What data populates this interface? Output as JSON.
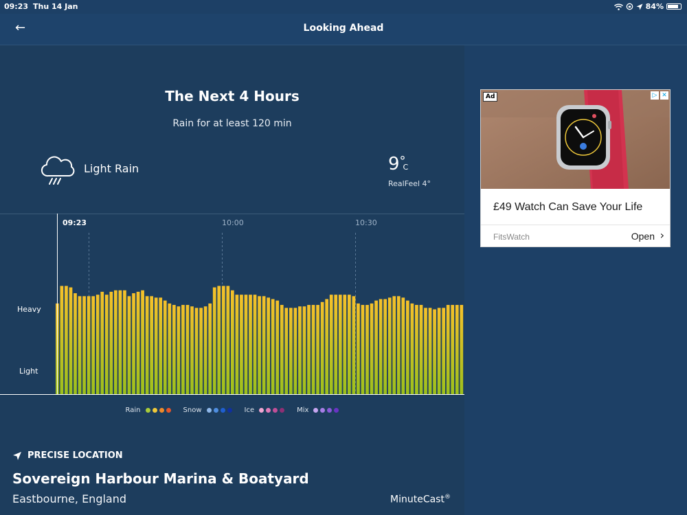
{
  "status_bar": {
    "time": "09:23",
    "date": "Thu 14 Jan",
    "battery": "84%",
    "battery_level": 0.84,
    "icons": [
      "wifi-icon",
      "lock-rotation-icon",
      "location-icon",
      "battery-icon"
    ]
  },
  "nav": {
    "back_icon": "back-arrow-icon",
    "title": "Looking Ahead"
  },
  "forecast": {
    "headline": "The Next 4 Hours",
    "summary": "Rain for at least 120 min",
    "condition_icon": "rain-cloud-icon",
    "condition": "Light Rain",
    "temperature": "9",
    "temperature_degree": "°",
    "temperature_unit": "C",
    "realfeel": "RealFeel 4°"
  },
  "chart_data": {
    "type": "bar",
    "y_labels": [
      "Heavy",
      "Light"
    ],
    "x_ticks": [
      "09:23",
      "10:00",
      "10:30"
    ],
    "current_time": "09:23",
    "series": [
      {
        "values": [
          0.62,
          0.74,
          0.74,
          0.73,
          0.69,
          0.67,
          0.67,
          0.67,
          0.67,
          0.68,
          0.7,
          0.68,
          0.7,
          0.71,
          0.71,
          0.71,
          0.67,
          0.69,
          0.7,
          0.71,
          0.67,
          0.67,
          0.66,
          0.66,
          0.64,
          0.62,
          0.61,
          0.6,
          0.61,
          0.61,
          0.6,
          0.59,
          0.59,
          0.6,
          0.62,
          0.73,
          0.74,
          0.74,
          0.74,
          0.71,
          0.68,
          0.68,
          0.68,
          0.68,
          0.68,
          0.67,
          0.67,
          0.66,
          0.65,
          0.64,
          0.61,
          0.59,
          0.59,
          0.59,
          0.6,
          0.6,
          0.61,
          0.61,
          0.61,
          0.63,
          0.65,
          0.68,
          0.68,
          0.68,
          0.68,
          0.68,
          0.67,
          0.62,
          0.61,
          0.61,
          0.62,
          0.64,
          0.65,
          0.65,
          0.66,
          0.67,
          0.67,
          0.66,
          0.64,
          0.62,
          0.61,
          0.61,
          0.59,
          0.59,
          0.58,
          0.59,
          0.59,
          0.61,
          0.61,
          0.61,
          0.61
        ]
      }
    ],
    "ylim": [
      0,
      1
    ],
    "gradient": {
      "top": "#f6c12a",
      "bottom": "#9cc01c"
    }
  },
  "legend": [
    {
      "label": "Rain",
      "colors": [
        "#a9cc3a",
        "#f0c93a",
        "#ef8a2a",
        "#e5552a"
      ]
    },
    {
      "label": "Snow",
      "colors": [
        "#8fb8ea",
        "#4f8ee0",
        "#1f5fd0",
        "#10309f"
      ]
    },
    {
      "label": "Ice",
      "colors": [
        "#f0a6d0",
        "#e07ab8",
        "#c04f98",
        "#8e2f74"
      ]
    },
    {
      "label": "Mix",
      "colors": [
        "#c7a6f0",
        "#a77ee6",
        "#8a5ad8",
        "#6a34c4"
      ]
    }
  ],
  "location": {
    "icon": "location-arrow-icon",
    "label": "PRECISE LOCATION",
    "name": "Sovereign Harbour Marina & Boatyard",
    "region": "Eastbourne, England"
  },
  "brand": {
    "name": "MinuteCast",
    "mark": "®"
  },
  "ad": {
    "badge": "Ad",
    "headline": "£49 Watch Can Save Your Life",
    "advertiser": "FitsWatch",
    "cta": "Open",
    "cta_icon": "chevron-right-icon"
  },
  "colors": {
    "background": "#1d4066",
    "panel": "#1d3d5d",
    "accent": "#ffffff"
  }
}
